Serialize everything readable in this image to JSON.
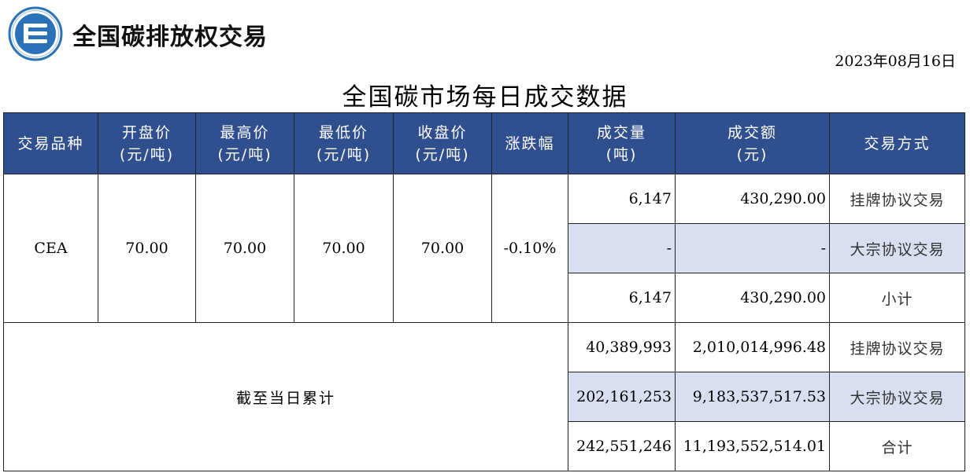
{
  "brand": "全国碳排放权交易",
  "date": "2023年08月16日",
  "title": "全国碳市场每日成交数据",
  "headers": {
    "variety": "交易品种",
    "open": [
      "开盘价",
      "(元/吨)"
    ],
    "high": [
      "最高价",
      "(元/吨)"
    ],
    "low": [
      "最低价",
      "(元/吨)"
    ],
    "close": [
      "收盘价",
      "(元/吨)"
    ],
    "change": "涨跌幅",
    "volume": [
      "成交量",
      "(吨)"
    ],
    "amount": [
      "成交额",
      "(元)"
    ],
    "mode": "交易方式"
  },
  "daily": {
    "variety": "CEA",
    "open": "70.00",
    "high": "70.00",
    "low": "70.00",
    "close": "70.00",
    "change": "-0.10%",
    "rows": [
      {
        "volume": "6,147",
        "amount": "430,290.00",
        "mode": "挂牌协议交易"
      },
      {
        "volume": "-",
        "amount": "-",
        "mode": "大宗协议交易"
      },
      {
        "volume": "6,147",
        "amount": "430,290.00",
        "mode": "小计"
      }
    ]
  },
  "cumulative": {
    "label": "截至当日累计",
    "rows": [
      {
        "volume": "40,389,993",
        "amount": "2,010,014,996.48",
        "mode": "挂牌协议交易"
      },
      {
        "volume": "202,161,253",
        "amount": "9,183,537,517.53",
        "mode": "大宗协议交易"
      },
      {
        "volume": "242,551,246",
        "amount": "11,193,552,514.01",
        "mode": "合计"
      }
    ]
  },
  "colors": {
    "header_bg": "#2f4f8f",
    "shade_bg": "#d9dff0",
    "logo_blue": "#2a72b8"
  }
}
